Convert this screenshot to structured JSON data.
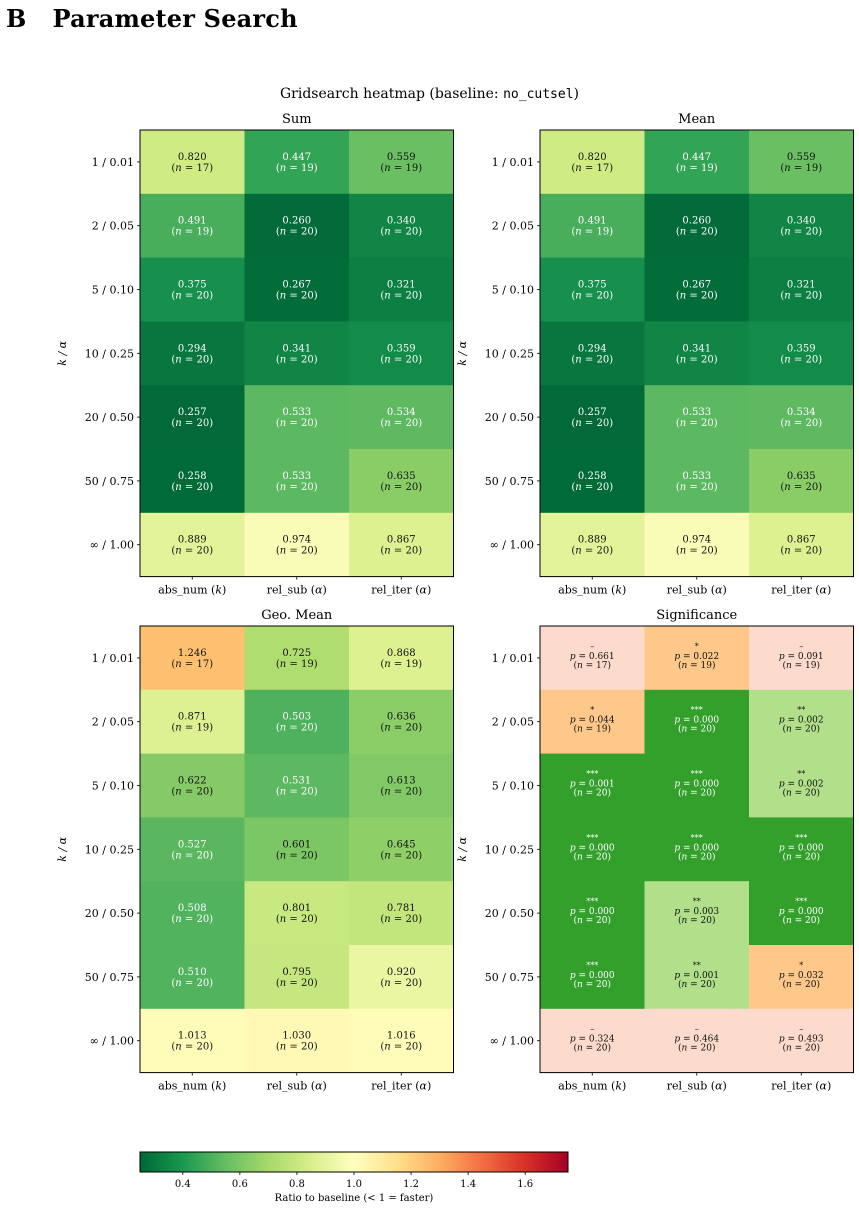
{
  "section": {
    "number": "B",
    "title": "Parameter Search"
  },
  "figure": {
    "suptitle_prefix": "Gridsearch heatmap (baseline: ",
    "suptitle_code": "no_cutsel",
    "suptitle_suffix": ")",
    "ylabel": "k / α"
  },
  "chart_data": {
    "type": "heatmap",
    "rows": [
      "1 / 0.01",
      "2 / 0.05",
      "5 / 0.10",
      "10 / 0.25",
      "20 / 0.50",
      "50 / 0.75",
      "∞ / 1.00"
    ],
    "cols": [
      "abs_num (k)",
      "rel_sub (α)",
      "rel_iter (α)"
    ],
    "n": [
      [
        17,
        19,
        19
      ],
      [
        19,
        20,
        20
      ],
      [
        20,
        20,
        20
      ],
      [
        20,
        20,
        20
      ],
      [
        20,
        20,
        20
      ],
      [
        20,
        20,
        20
      ],
      [
        20,
        20,
        20
      ]
    ],
    "panels": [
      {
        "title": "Sum",
        "values": [
          [
            0.82,
            0.447,
            0.559
          ],
          [
            0.491,
            0.26,
            0.34
          ],
          [
            0.375,
            0.267,
            0.321
          ],
          [
            0.294,
            0.341,
            0.359
          ],
          [
            0.257,
            0.533,
            0.534
          ],
          [
            0.258,
            0.533,
            0.635
          ],
          [
            0.889,
            0.974,
            0.867
          ]
        ]
      },
      {
        "title": "Mean",
        "values": [
          [
            0.82,
            0.447,
            0.559
          ],
          [
            0.491,
            0.26,
            0.34
          ],
          [
            0.375,
            0.267,
            0.321
          ],
          [
            0.294,
            0.341,
            0.359
          ],
          [
            0.257,
            0.533,
            0.534
          ],
          [
            0.258,
            0.533,
            0.635
          ],
          [
            0.889,
            0.974,
            0.867
          ]
        ]
      },
      {
        "title": "Geo. Mean",
        "values": [
          [
            1.246,
            0.725,
            0.868
          ],
          [
            0.871,
            0.503,
            0.636
          ],
          [
            0.622,
            0.531,
            0.613
          ],
          [
            0.527,
            0.601,
            0.645
          ],
          [
            0.508,
            0.801,
            0.781
          ],
          [
            0.51,
            0.795,
            0.92
          ],
          [
            1.013,
            1.03,
            1.016
          ]
        ]
      },
      {
        "title": "Significance",
        "pvalues": [
          [
            "0.661",
            "0.022",
            "0.091"
          ],
          [
            "0.044",
            "0.000",
            "0.002"
          ],
          [
            "0.001",
            "0.000",
            "0.002"
          ],
          [
            "0.000",
            "0.000",
            "0.000"
          ],
          [
            "0.000",
            "0.003",
            "0.000"
          ],
          [
            "0.000",
            "0.001",
            "0.032"
          ],
          [
            "0.324",
            "0.464",
            "0.493"
          ]
        ],
        "stars": [
          [
            "–",
            "*",
            "–"
          ],
          [
            "*",
            "***",
            "**"
          ],
          [
            "***",
            "***",
            "**"
          ],
          [
            "***",
            "***",
            "***"
          ],
          [
            "***",
            "**",
            "***"
          ],
          [
            "***",
            "**",
            "*"
          ],
          [
            "–",
            "–",
            "–"
          ]
        ],
        "colors": [
          [
            "#fcdbcc",
            "#fdc88a",
            "#fcdbcc"
          ],
          [
            "#fdc88a",
            "#33a02c",
            "#b2df8a"
          ],
          [
            "#33a02c",
            "#33a02c",
            "#b2df8a"
          ],
          [
            "#33a02c",
            "#33a02c",
            "#33a02c"
          ],
          [
            "#33a02c",
            "#b2df8a",
            "#33a02c"
          ],
          [
            "#33a02c",
            "#b2df8a",
            "#fdc88a"
          ],
          [
            "#fcdbcc",
            "#fcdbcc",
            "#fcdbcc"
          ]
        ]
      }
    ],
    "colorbar": {
      "label": "Ratio to baseline (< 1 = faster)",
      "range": [
        0.25,
        1.75
      ],
      "ticks": [
        "0.4",
        "0.6",
        "0.8",
        "1.0",
        "1.2",
        "1.4",
        "1.6"
      ],
      "colormap": "RdYlGn_r"
    }
  }
}
